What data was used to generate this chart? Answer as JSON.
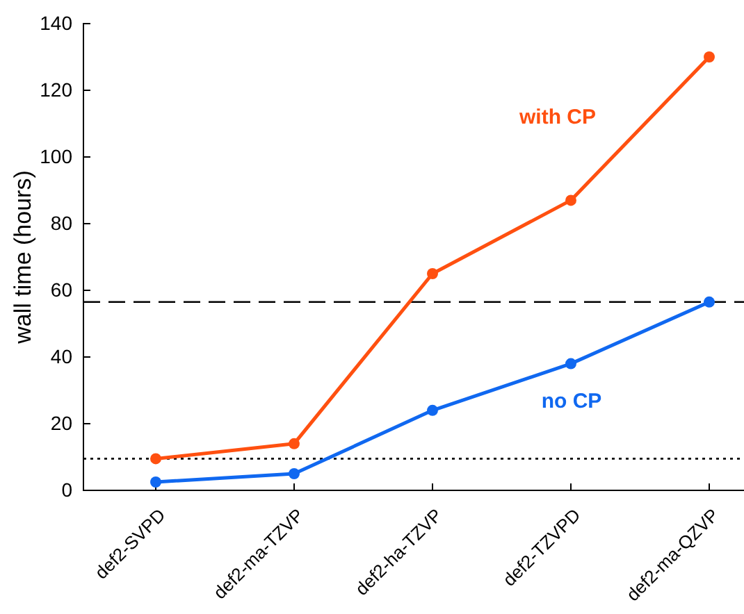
{
  "chart_data": {
    "type": "line",
    "ylabel": "wall time (hours)",
    "categories": [
      "def2-SVPD",
      "def2-ma-TZVP",
      "def2-ha-TZVP",
      "def2-TZVPD",
      "def2-ma-QZVP"
    ],
    "series": [
      {
        "name": "with CP",
        "color": "#ff5010",
        "values": [
          9.5,
          14,
          65,
          87,
          130
        ]
      },
      {
        "name": "no CP",
        "color": "#1068f0",
        "values": [
          2.5,
          5,
          24,
          38,
          56.5
        ]
      }
    ],
    "ylim": [
      0,
      140
    ],
    "yticks": [
      0,
      20,
      40,
      60,
      80,
      100,
      120,
      140
    ],
    "marker": "circle",
    "line_style": "solid",
    "legend": false,
    "ref_lines": [
      {
        "axis": "y",
        "value": 56.5,
        "line_style": "dashed"
      },
      {
        "axis": "y",
        "value": 9.5,
        "line_style": "dotted"
      }
    ]
  }
}
